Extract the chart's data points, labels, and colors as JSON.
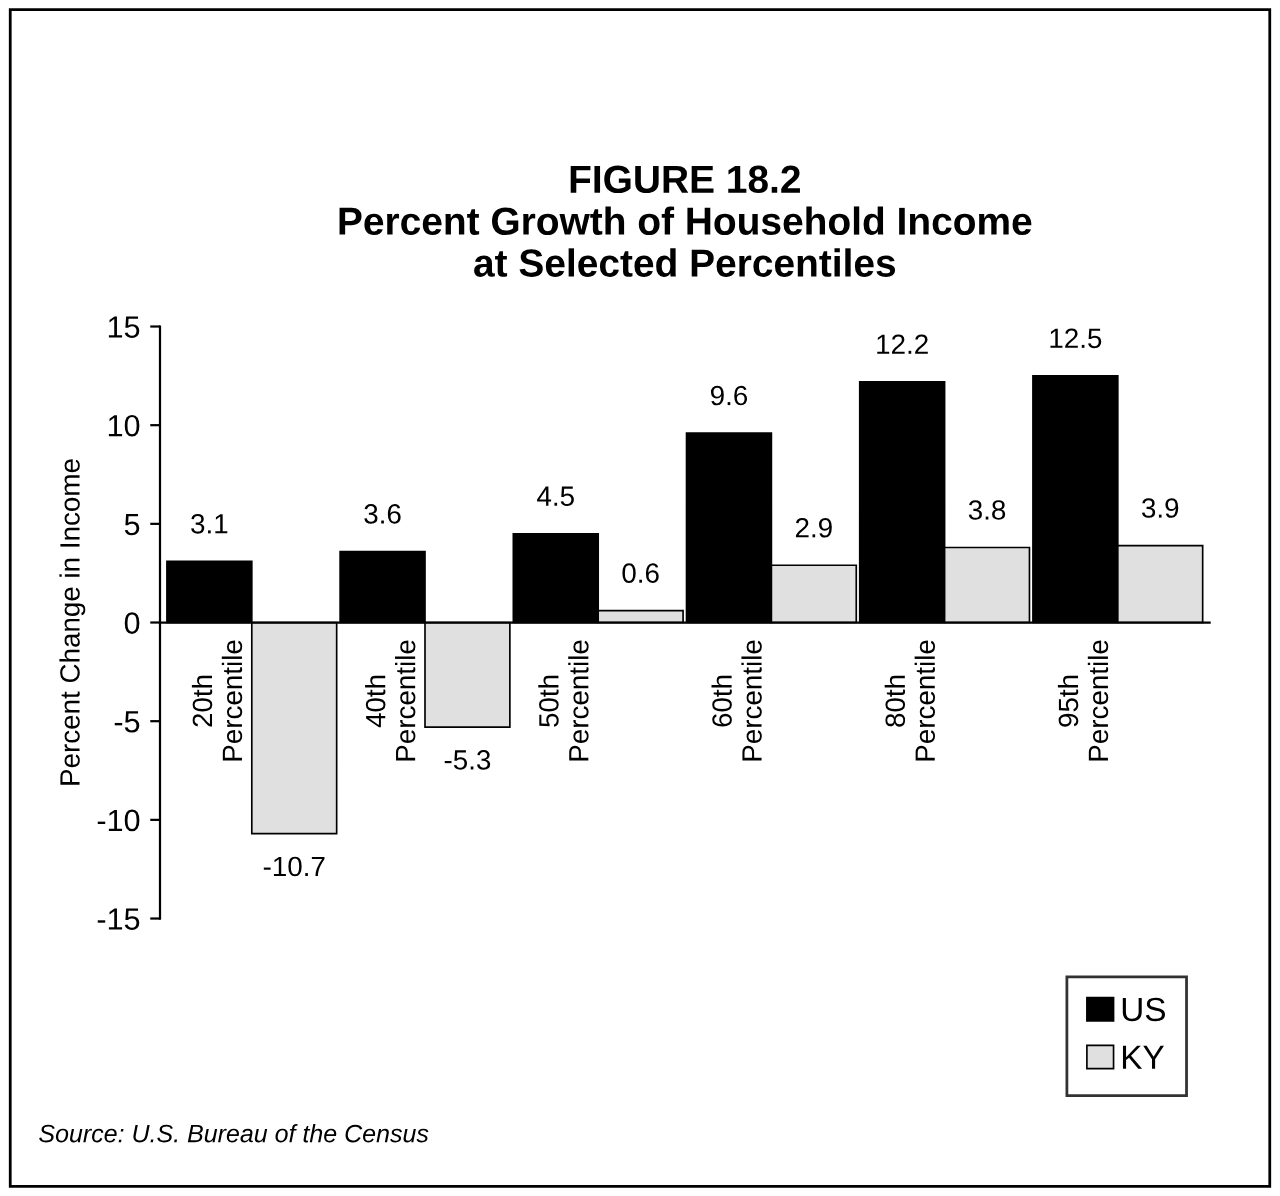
{
  "chart_data": {
    "type": "bar",
    "title": "FIGURE 18.2\nPercent Growth of Household Income\nat Selected Percentiles",
    "ylabel": "Percent Change in Income",
    "categories": [
      "20th Percentile",
      "40th Percentile",
      "50th Percentile",
      "60th Percentile",
      "80th Percentile",
      "95th Percentile"
    ],
    "series": [
      {
        "name": "US",
        "color": "#000000",
        "values": [
          3.1,
          3.6,
          4.5,
          9.6,
          12.2,
          12.5
        ]
      },
      {
        "name": "KY",
        "color": "#e0e0e0",
        "values": [
          -10.7,
          -5.3,
          0.6,
          2.9,
          3.8,
          3.9
        ]
      }
    ],
    "ylim": [
      -15,
      15
    ],
    "yticks": [
      -15,
      -10,
      -5,
      0,
      5,
      10,
      15
    ],
    "grid": false,
    "legend": "bottom right",
    "data_labels": true,
    "annotations": [
      "Source: U.S. Bureau of the Census"
    ]
  }
}
